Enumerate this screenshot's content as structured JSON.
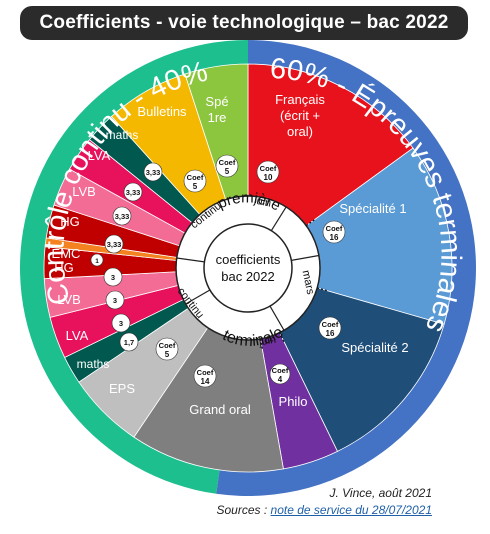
{
  "title": "Coefficients - voie technologique – bac 2022",
  "outer_labels": {
    "left": "Contrôle continu - 40%",
    "right": "60% - Épreuves terminales"
  },
  "center": {
    "line1": "coefficients",
    "line2": "bac 2022"
  },
  "inner_ring": {
    "premiere": "première",
    "terminale": "terminale",
    "continu_top": "continu",
    "continu_bottom": "continu",
    "juin_top": "juin",
    "juin_bottom": "juin",
    "mars": "mars"
  },
  "sectors": [
    {
      "id": "francais",
      "label": "Français\n(écrit +\noral)",
      "coef_label": "Coef",
      "coef": "10",
      "color": "#e8121c"
    },
    {
      "id": "specialite1",
      "label": "Spécialité 1",
      "coef_label": "Coef",
      "coef": "16",
      "color": "#5b9bd5"
    },
    {
      "id": "specialite2",
      "label": "Spécialité 2",
      "coef_label": "Coef",
      "coef": "16",
      "color": "#1f4e79"
    },
    {
      "id": "philo",
      "label": "Philo",
      "coef_label": "Coef",
      "coef": "4",
      "color": "#7030a0"
    },
    {
      "id": "grand_oral",
      "label": "Grand oral",
      "coef_label": "Coef",
      "coef": "14",
      "color": "#7f7f7f"
    },
    {
      "id": "eps",
      "label": "EPS",
      "coef_label": "Coef",
      "coef": "5",
      "color": "#bfbfbf"
    },
    {
      "id": "maths_t",
      "label": "maths",
      "coef": "1,7",
      "color": "#00584f"
    },
    {
      "id": "lva_t",
      "label": "LVA",
      "coef": "3",
      "color": "#e8115b"
    },
    {
      "id": "lvb_t",
      "label": "LVB",
      "coef": "3",
      "color": "#f36c96"
    },
    {
      "id": "hg_t",
      "label": "HG",
      "coef": "3",
      "color": "#c00000"
    },
    {
      "id": "emc",
      "label": "EMC",
      "coef": "1",
      "color": "#f58220"
    },
    {
      "id": "hg_p",
      "label": "HG",
      "coef": "3,33",
      "color": "#c00000"
    },
    {
      "id": "lvb_p",
      "label": "LVB",
      "coef": "3,33",
      "color": "#f36c96"
    },
    {
      "id": "lva_p",
      "label": "LVA",
      "coef": "3,33",
      "color": "#e8115b"
    },
    {
      "id": "maths_p",
      "label": "maths",
      "coef": "3,33",
      "color": "#00584f"
    },
    {
      "id": "bulletins",
      "label": "Bulletins",
      "coef_label": "Coef",
      "coef": "5",
      "color": "#f5b800"
    },
    {
      "id": "spe1re",
      "label": "Spé\n1re",
      "coef_label": "Coef",
      "coef": "5",
      "color": "#8cc63f"
    }
  ],
  "colors": {
    "ring_left": "#1dbf8e",
    "ring_right": "#4472c4",
    "ring_text": "#ffffff"
  },
  "credit": "J. Vince, août 2021",
  "sources_prefix": "Sources : ",
  "sources_link": "note de service du 28/07/2021"
}
